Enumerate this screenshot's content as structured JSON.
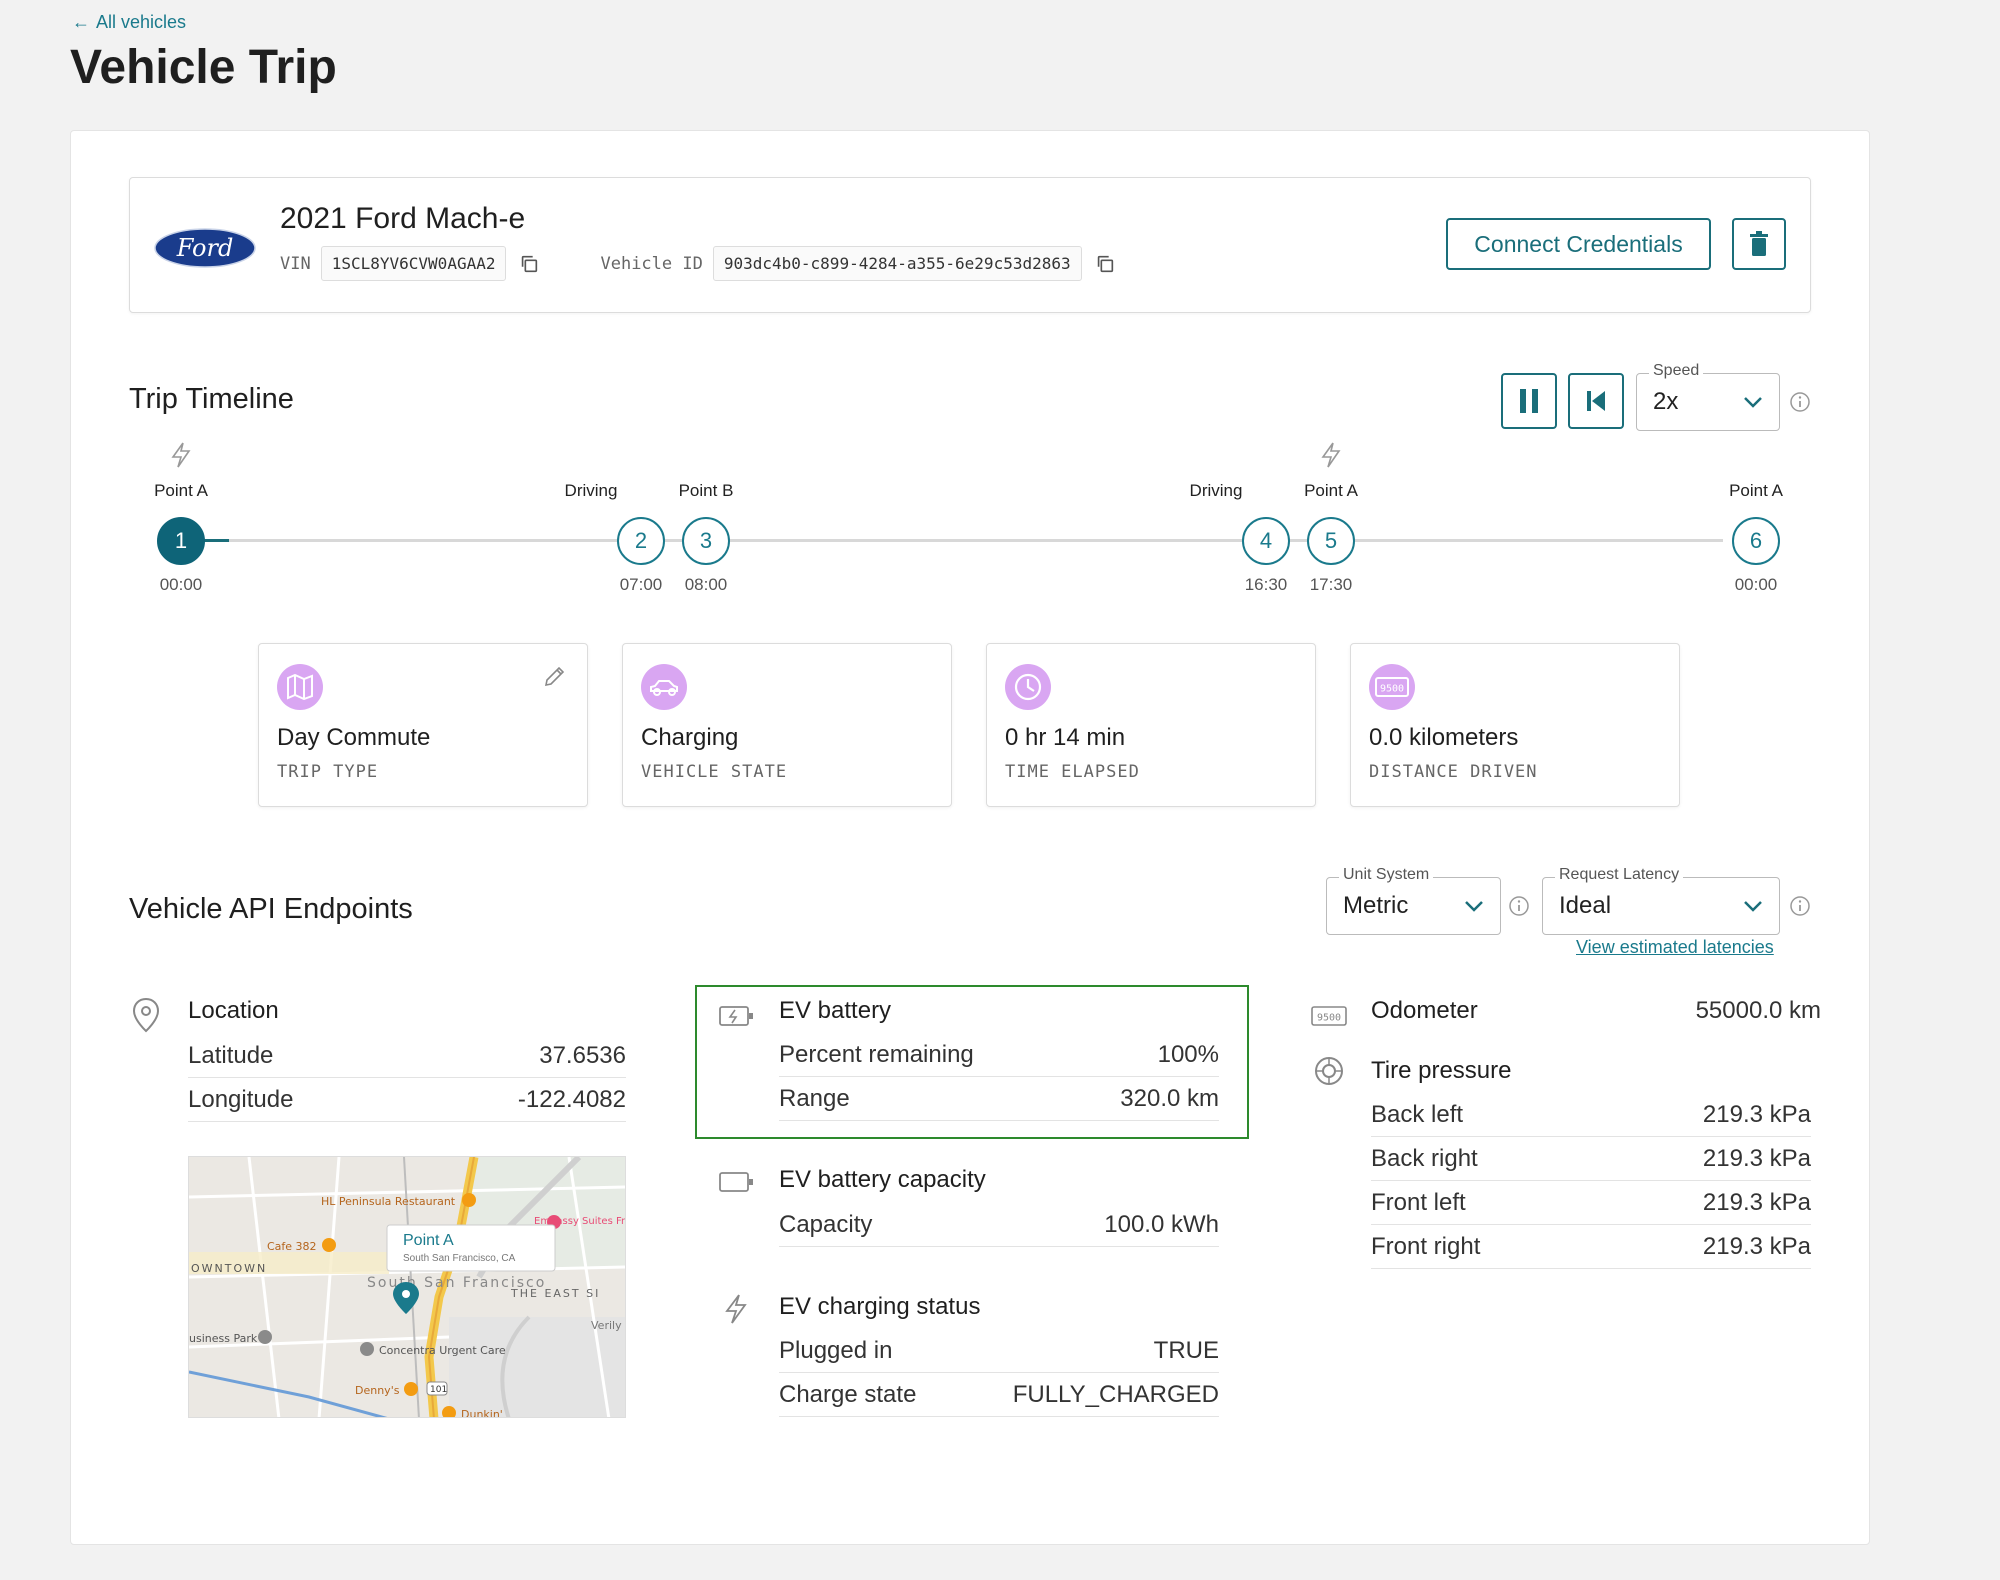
{
  "nav": {
    "back_label": "All vehicles"
  },
  "page": {
    "title": "Vehicle Trip"
  },
  "vehicle": {
    "name": "2021 Ford Mach-e",
    "logo_text": "Ford",
    "vin_label": "VIN",
    "vin": "1SCL8YV6CVW0AGAA2",
    "id_label": "Vehicle ID",
    "id": "903dc4b0-c899-4284-a355-6e29c53d2863",
    "connect_label": "Connect Credentials"
  },
  "timeline": {
    "title": "Trip Timeline",
    "speed_label": "Speed",
    "speed_value": "2x",
    "progress_fraction": 0.03,
    "nodes": [
      {
        "num": "1",
        "label": "Point A",
        "time": "00:00",
        "charging": true,
        "active": true
      },
      {
        "num": "2",
        "label": "Driving",
        "time": "07:00",
        "charging": false,
        "active": false
      },
      {
        "num": "3",
        "label": "Point B",
        "time": "08:00",
        "charging": false,
        "active": false
      },
      {
        "num": "4",
        "label": "Driving",
        "time": "16:30",
        "charging": false,
        "active": false
      },
      {
        "num": "5",
        "label": "Point A",
        "time": "17:30",
        "charging": true,
        "active": false
      },
      {
        "num": "6",
        "label": "Point A",
        "time": "00:00",
        "charging": false,
        "active": false
      }
    ]
  },
  "stats": [
    {
      "value": "Day Commute",
      "label": "TRIP TYPE",
      "icon": "map-icon"
    },
    {
      "value": "Charging",
      "label": "VEHICLE STATE",
      "icon": "car-icon"
    },
    {
      "value": "0 hr 14 min",
      "label": "TIME ELAPSED",
      "icon": "clock-icon"
    },
    {
      "value": "0.0 kilometers",
      "label": "DISTANCE DRIVEN",
      "icon": "odometer-icon"
    }
  ],
  "stat_icon_text": "9500",
  "api": {
    "title": "Vehicle API Endpoints",
    "unit_label": "Unit System",
    "unit_value": "Metric",
    "latency_label": "Request Latency",
    "latency_value": "Ideal",
    "latency_link": "View estimated latencies",
    "location": {
      "title": "Location",
      "rows": [
        {
          "k": "Latitude",
          "v": "37.6536"
        },
        {
          "k": "Longitude",
          "v": "-122.4082"
        }
      ]
    },
    "map": {
      "pin_title": "Point A",
      "pin_sub": "South San Francisco, CA",
      "labels": [
        "HL Peninsula Restaurant",
        "Cafe 382",
        "OWNTOWN",
        "Embassy Suites Francisco A",
        "South San Francisco",
        "THE EAST SI",
        "Verily",
        "Concentra Urgent Care",
        "usiness Park",
        "Denny's",
        "Dunkin'",
        "101"
      ]
    },
    "ev_battery": {
      "title": "EV battery",
      "rows": [
        {
          "k": "Percent remaining",
          "v": "100%"
        },
        {
          "k": "Range",
          "v": "320.0 km"
        }
      ]
    },
    "ev_capacity": {
      "title": "EV battery capacity",
      "rows": [
        {
          "k": "Capacity",
          "v": "100.0 kWh"
        }
      ]
    },
    "ev_charging": {
      "title": "EV charging status",
      "rows": [
        {
          "k": "Plugged in",
          "v": "TRUE"
        },
        {
          "k": "Charge state",
          "v": "FULLY_CHARGED"
        }
      ]
    },
    "odometer": {
      "title": "Odometer",
      "value": "55000.0 km",
      "icon_text": "9500"
    },
    "tires": {
      "title": "Tire pressure",
      "rows": [
        {
          "k": "Back left",
          "v": "219.3 kPa"
        },
        {
          "k": "Back right",
          "v": "219.3 kPa"
        },
        {
          "k": "Front left",
          "v": "219.3 kPa"
        },
        {
          "k": "Front right",
          "v": "219.3 kPa"
        }
      ]
    }
  },
  "colors": {
    "accent": "#1a6e7a",
    "stat_icon_bg": "#d9a6f2",
    "highlight": "#2d8a2d"
  }
}
